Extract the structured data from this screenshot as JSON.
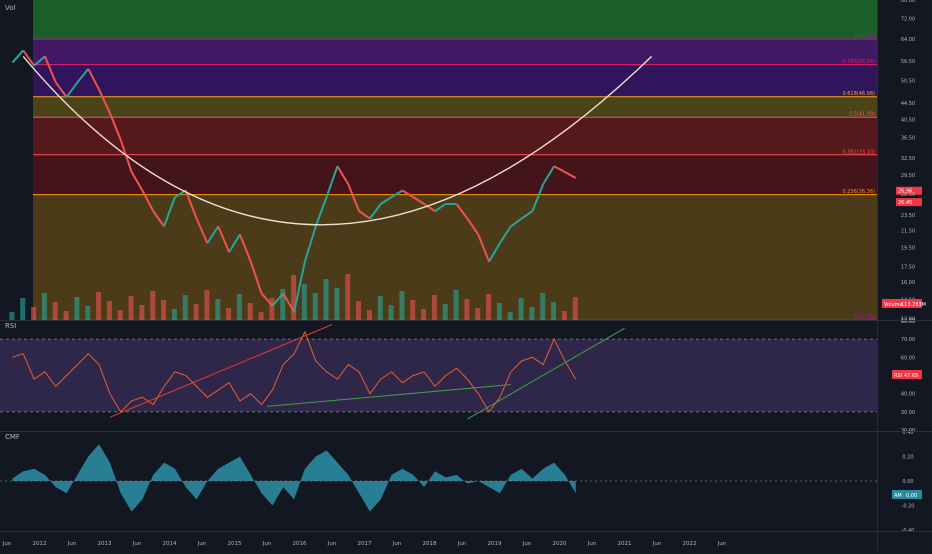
{
  "colors": {
    "background": "#131722",
    "candle_up": "#26a69a",
    "candle_down": "#ef5350",
    "rsi_line": "#e85d2f",
    "rsi_band": "#7e57c2",
    "cmf_fill": "#2b8a9e",
    "arc": "#f0e0d0",
    "trend_red": "#e53935",
    "trend_green": "#43a047"
  },
  "panes": {
    "price": {
      "label": "Vol",
      "volume_label": "Volume",
      "volume_value": "113.283M"
    },
    "rsi": {
      "label": "RSI",
      "value_label": "RSI",
      "value": "47.65"
    },
    "cmf": {
      "label": "CMF",
      "value_label": "AM",
      "value": "0.00"
    }
  },
  "chart_data": [
    {
      "type": "line",
      "pane": "price",
      "scale": "log",
      "ylim": [
        12.9,
        80.0
      ],
      "y_ticks": [
        "80.00",
        "72.00",
        "64.00",
        "56.50",
        "50.50",
        "44.50",
        "40.50",
        "36.50",
        "32.50",
        "29.50",
        "26.50",
        "23.50",
        "21.50",
        "19.50",
        "17.50",
        "16.00",
        "14.50",
        "13.00",
        "12.90"
      ],
      "x_ticks": [
        "Jun",
        "2012",
        "Jun",
        "2013",
        "Jun",
        "2014",
        "Jun",
        "2015",
        "Jun",
        "2016",
        "Jun",
        "2017",
        "Jun",
        "2018",
        "Jun",
        "2019",
        "Jun",
        "2020",
        "Jun",
        "2021",
        "Jun",
        "2022",
        "Jun"
      ],
      "fib_levels": [
        {
          "label": "1(64.00)",
          "value": 64.0
        },
        {
          "label": "0.786(55.34)",
          "value": 55.34
        },
        {
          "label": "0.618(46.08)",
          "value": 46.08
        },
        {
          "label": "0.5(41.00)",
          "value": 41.0
        },
        {
          "label": "0.382(33.10)",
          "value": 33.1
        },
        {
          "label": "0.236(26.36)",
          "value": 26.36
        },
        {
          "label": "0(12.89)",
          "value": 12.89
        }
      ],
      "last_price": {
        "label": "26.96",
        "value": 26.96
      },
      "prev_label": {
        "label": "26.45",
        "value": 26.45
      },
      "series_dates": [
        "2011-07",
        "2011-09",
        "2011-11",
        "2012-01",
        "2012-03",
        "2012-05",
        "2012-07",
        "2012-09",
        "2012-11",
        "2013-01",
        "2013-03",
        "2013-05",
        "2013-07",
        "2013-09",
        "2013-11",
        "2014-01",
        "2014-03",
        "2014-05",
        "2014-07",
        "2014-09",
        "2014-11",
        "2015-01",
        "2015-03",
        "2015-05",
        "2015-07",
        "2015-09",
        "2015-11",
        "2016-01",
        "2016-03",
        "2016-05",
        "2016-07",
        "2016-09",
        "2016-11",
        "2017-01",
        "2017-03",
        "2017-05",
        "2017-07",
        "2017-09",
        "2017-11",
        "2018-01",
        "2018-03",
        "2018-05",
        "2018-07",
        "2018-09",
        "2018-11",
        "2019-01",
        "2019-03",
        "2019-05",
        "2019-07",
        "2019-09",
        "2019-11",
        "2020-01",
        "2020-03"
      ],
      "series": [
        {
          "values": [
            56,
            60,
            55,
            58,
            50,
            46,
            50,
            54,
            48,
            42,
            36,
            30,
            27,
            24,
            22,
            26,
            27,
            23,
            20,
            22,
            19,
            21,
            18,
            15,
            14,
            15,
            13.5,
            18,
            22,
            26,
            31,
            28,
            24,
            23,
            25,
            26,
            27,
            26,
            25,
            24,
            25,
            25,
            23,
            21,
            18,
            20,
            22,
            23,
            24,
            28,
            31,
            30,
            29
          ]
        }
      ]
    },
    {
      "type": "line",
      "pane": "rsi",
      "ylim": [
        20,
        80
      ],
      "y_ticks": [
        "80.00",
        "70.00",
        "60.00",
        "50.00",
        "40.00",
        "30.00",
        "20.00"
      ],
      "bands": [
        30,
        70
      ],
      "series": [
        {
          "values": [
            60,
            62,
            48,
            52,
            44,
            50,
            56,
            62,
            56,
            40,
            30,
            36,
            38,
            34,
            44,
            52,
            50,
            44,
            38,
            42,
            46,
            36,
            40,
            34,
            42,
            56,
            62,
            74,
            58,
            52,
            48,
            56,
            52,
            40,
            48,
            52,
            46,
            50,
            52,
            44,
            50,
            54,
            48,
            40,
            30,
            38,
            52,
            58,
            60,
            56,
            70,
            58,
            48
          ]
        }
      ]
    },
    {
      "type": "area",
      "pane": "cmf",
      "ylim": [
        -0.4,
        0.4
      ],
      "y_ticks": [
        "0.40",
        "0.20",
        "0.00",
        "-0.20",
        "-0.40"
      ],
      "series": [
        {
          "values": [
            0.02,
            0.08,
            0.1,
            0.05,
            -0.05,
            -0.1,
            0.05,
            0.2,
            0.3,
            0.15,
            -0.1,
            -0.25,
            -0.15,
            0.05,
            0.15,
            0.1,
            -0.05,
            -0.15,
            0.0,
            0.1,
            0.15,
            0.2,
            0.05,
            -0.1,
            -0.2,
            -0.05,
            -0.15,
            0.1,
            0.2,
            0.25,
            0.15,
            0.05,
            -0.1,
            -0.25,
            -0.15,
            0.05,
            0.1,
            0.05,
            -0.05,
            0.08,
            0.03,
            0.05,
            -0.02,
            0.0,
            -0.05,
            -0.1,
            0.05,
            0.1,
            0.02,
            0.1,
            0.15,
            0.05,
            -0.1
          ]
        }
      ]
    }
  ]
}
